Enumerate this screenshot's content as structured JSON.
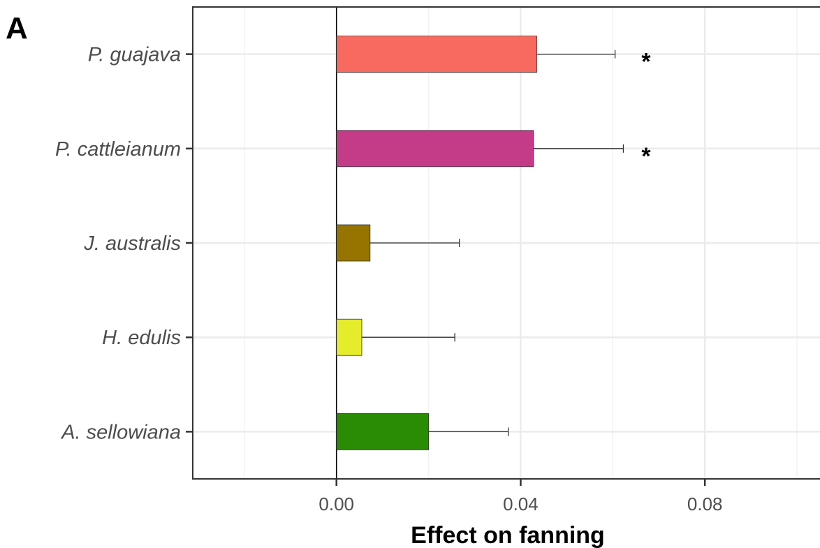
{
  "panel_label": "A",
  "chart_data": {
    "type": "bar",
    "orientation": "horizontal",
    "title": "",
    "xlabel": "Effect on fanning",
    "ylabel": "",
    "categories": [
      "P. guajava",
      "P. cattleianum",
      "J. australis",
      "H. edulis",
      "A. sellowiana"
    ],
    "values": [
      0.0435,
      0.0428,
      0.0073,
      0.0055,
      0.02
    ],
    "error_upper": [
      0.0605,
      0.0623,
      0.0267,
      0.0257,
      0.0373
    ],
    "significance": [
      "*",
      "*",
      "",
      "",
      ""
    ],
    "colors": [
      "#f8695f",
      "#c43b87",
      "#977400",
      "#e5ec2c",
      "#2a8c04"
    ],
    "xlim": [
      -0.0312,
      0.105
    ],
    "xticks": [
      0.0,
      0.04,
      0.08
    ],
    "xtick_labels": [
      "0.00",
      "0.04",
      "0.08"
    ],
    "grid": true,
    "reference_line": 0
  }
}
